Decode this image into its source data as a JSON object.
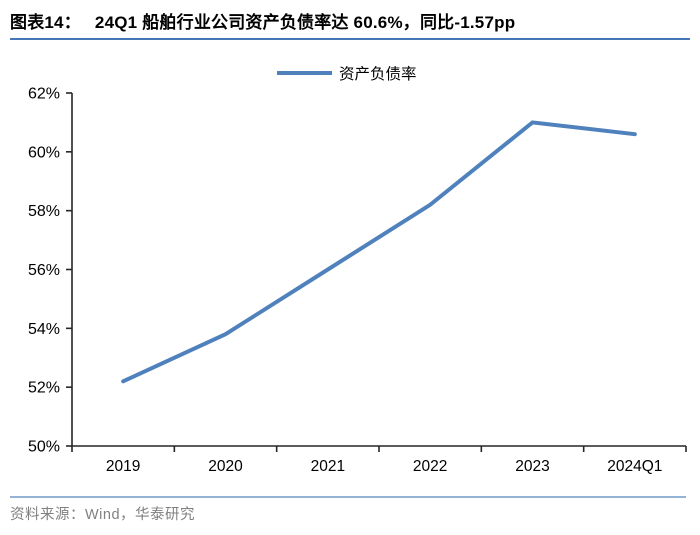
{
  "header": {
    "label": "图表14：",
    "title": "24Q1 船舶行业公司资产负债率达 60.6%，同比-1.57pp"
  },
  "footer": {
    "source": "资料来源：Wind，华泰研究"
  },
  "chart_data": {
    "type": "line",
    "title": "",
    "categories": [
      "2019",
      "2020",
      "2021",
      "2022",
      "2023",
      "2024Q1"
    ],
    "series": [
      {
        "name": "资产负债率",
        "values": [
          52.2,
          53.8,
          56.0,
          58.2,
          61.0,
          60.6
        ]
      }
    ],
    "ylabel": "",
    "xlabel": "",
    "ylim": [
      50,
      62
    ],
    "ytick_step": 2,
    "ytick_labels": [
      "62%",
      "60%",
      "58%",
      "56%",
      "54%",
      "52%",
      "50%"
    ],
    "grid": false,
    "legend_position": "top-center"
  },
  "colors": {
    "series_line": "#4F81BD",
    "title_rule": "#4576B5",
    "footer_rule": "#95B3D7",
    "footer_text": "#808080",
    "axis": "#262626",
    "label_text": "#000000"
  }
}
